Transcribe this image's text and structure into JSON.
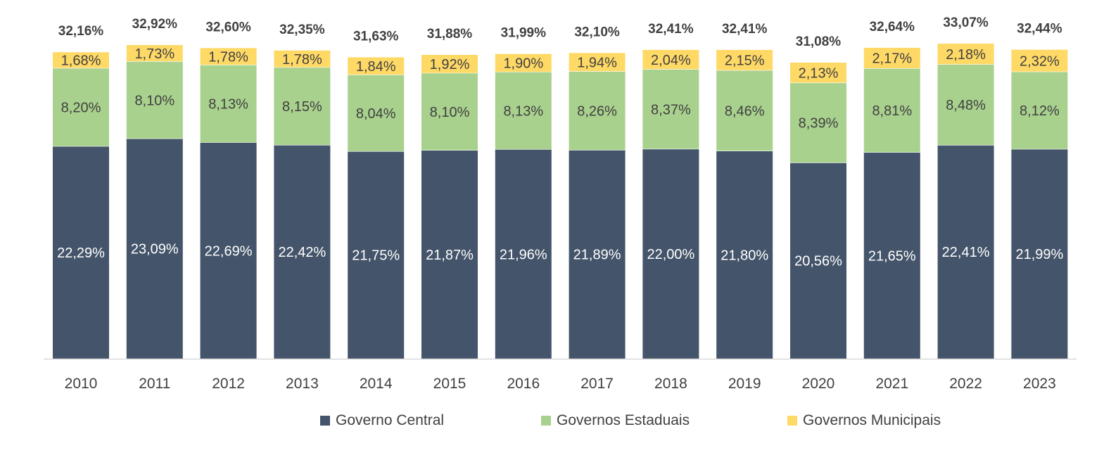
{
  "chart_data": {
    "type": "bar",
    "stacked": true,
    "categories": [
      "2010",
      "2011",
      "2012",
      "2013",
      "2014",
      "2015",
      "2016",
      "2017",
      "2018",
      "2019",
      "2020",
      "2021",
      "2022",
      "2023"
    ],
    "series": [
      {
        "name": "Governo Central",
        "color": "#44546a",
        "values": [
          22.29,
          23.09,
          22.69,
          22.42,
          21.75,
          21.87,
          21.96,
          21.89,
          22.0,
          21.8,
          20.56,
          21.65,
          22.41,
          21.99
        ],
        "labels": [
          "22,29%",
          "23,09%",
          "22,69%",
          "22,42%",
          "21,75%",
          "21,87%",
          "21,96%",
          "21,89%",
          "22,00%",
          "21,80%",
          "20,56%",
          "21,65%",
          "22,41%",
          "21,99%"
        ]
      },
      {
        "name": "Governos Estaduais",
        "color": "#a9d18e",
        "values": [
          8.2,
          8.1,
          8.13,
          8.15,
          8.04,
          8.1,
          8.13,
          8.26,
          8.37,
          8.46,
          8.39,
          8.81,
          8.48,
          8.12
        ],
        "labels": [
          "8,20%",
          "8,10%",
          "8,13%",
          "8,15%",
          "8,04%",
          "8,10%",
          "8,13%",
          "8,26%",
          "8,37%",
          "8,46%",
          "8,39%",
          "8,81%",
          "8,48%",
          "8,12%"
        ]
      },
      {
        "name": "Governos Municipais",
        "color": "#ffd966",
        "values": [
          1.68,
          1.73,
          1.78,
          1.78,
          1.84,
          1.92,
          1.9,
          1.94,
          2.04,
          2.15,
          2.13,
          2.17,
          2.18,
          2.32
        ],
        "labels": [
          "1,68%",
          "1,73%",
          "1,78%",
          "1,78%",
          "1,84%",
          "1,92%",
          "1,90%",
          "1,94%",
          "2,04%",
          "2,15%",
          "2,13%",
          "2,17%",
          "2,18%",
          "2,32%"
        ]
      }
    ],
    "totals": [
      32.16,
      32.92,
      32.6,
      32.35,
      31.63,
      31.88,
      31.99,
      32.1,
      32.41,
      32.41,
      31.08,
      32.64,
      33.07,
      32.44
    ],
    "total_labels": [
      "32,16%",
      "32,92%",
      "32,60%",
      "32,35%",
      "31,63%",
      "31,88%",
      "31,99%",
      "32,10%",
      "32,41%",
      "32,41%",
      "31,08%",
      "32,64%",
      "33,07%",
      "32,44%"
    ],
    "ylim": [
      0,
      33.07
    ],
    "grid": false,
    "y_axis_visible": false,
    "legend_position": "bottom",
    "segment_label_colors": [
      "#ffffff",
      "#404040",
      "#404040"
    ],
    "axis_color": "#d9d9d9",
    "title": "",
    "xlabel": "",
    "ylabel": ""
  }
}
